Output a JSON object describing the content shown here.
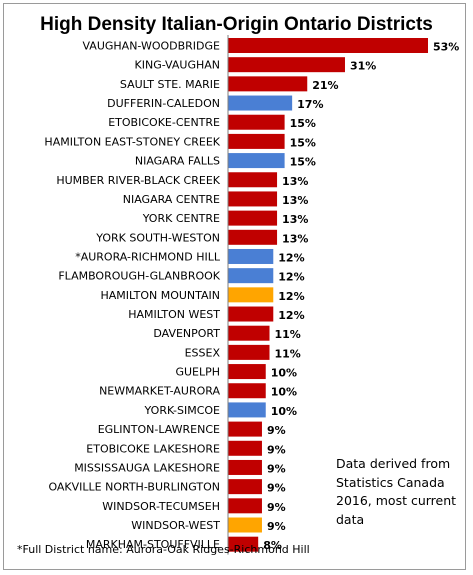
{
  "chart_data": {
    "type": "bar",
    "orientation": "horizontal",
    "title": "High Density Italian-Origin Ontario Districts",
    "categories": [
      "VAUGHAN-WOODBRIDGE",
      "KING-VAUGHAN",
      "SAULT STE. MARIE",
      "DUFFERIN-CALEDON",
      "ETOBICOKE-CENTRE",
      "HAMILTON EAST-STONEY CREEK",
      "NIAGARA FALLS",
      "HUMBER RIVER-BLACK CREEK",
      "NIAGARA CENTRE",
      "YORK CENTRE",
      "YORK SOUTH-WESTON",
      "*AURORA-RICHMOND HILL",
      "FLAMBOROUGH-GLANBROOK",
      "HAMILTON MOUNTAIN",
      "HAMILTON WEST",
      "DAVENPORT",
      "ESSEX",
      "GUELPH",
      "NEWMARKET-AURORA",
      "YORK-SIMCOE",
      "EGLINTON-LAWRENCE",
      "ETOBICOKE LAKESHORE",
      "MISSISSAUGA LAKESHORE",
      "OAKVILLE NORTH-BURLINGTON",
      "WINDSOR-TECUMSEH",
      "WINDSOR-WEST",
      "MARKHAM-STOUFFVILLE"
    ],
    "values": [
      53,
      31,
      21,
      17,
      15,
      15,
      15,
      13,
      13,
      13,
      13,
      12,
      12,
      12,
      12,
      11,
      11,
      10,
      10,
      10,
      9,
      9,
      9,
      9,
      9,
      9,
      8
    ],
    "value_labels": [
      "53%",
      "31%",
      "21%",
      "17%",
      "15%",
      "15%",
      "15%",
      "13%",
      "13%",
      "13%",
      "13%",
      "12%",
      "12%",
      "12%",
      "12%",
      "11%",
      "11%",
      "10%",
      "10%",
      "10%",
      "9%",
      "9%",
      "9%",
      "9%",
      "9%",
      "9%",
      "8%"
    ],
    "bar_colors": [
      "#c00000",
      "#c00000",
      "#c00000",
      "#4a7fd4",
      "#c00000",
      "#c00000",
      "#4a7fd4",
      "#c00000",
      "#c00000",
      "#c00000",
      "#c00000",
      "#4a7fd4",
      "#4a7fd4",
      "#ffa500",
      "#c00000",
      "#c00000",
      "#c00000",
      "#c00000",
      "#c00000",
      "#4a7fd4",
      "#c00000",
      "#c00000",
      "#c00000",
      "#c00000",
      "#c00000",
      "#ffa500",
      "#c00000"
    ],
    "xlim": [
      0,
      53
    ],
    "annotation": "Data derived from Statistics Canada 2016, most current data",
    "footnote": "*Full District name: Aurora-Oak Ridges-Richmond Hill"
  }
}
